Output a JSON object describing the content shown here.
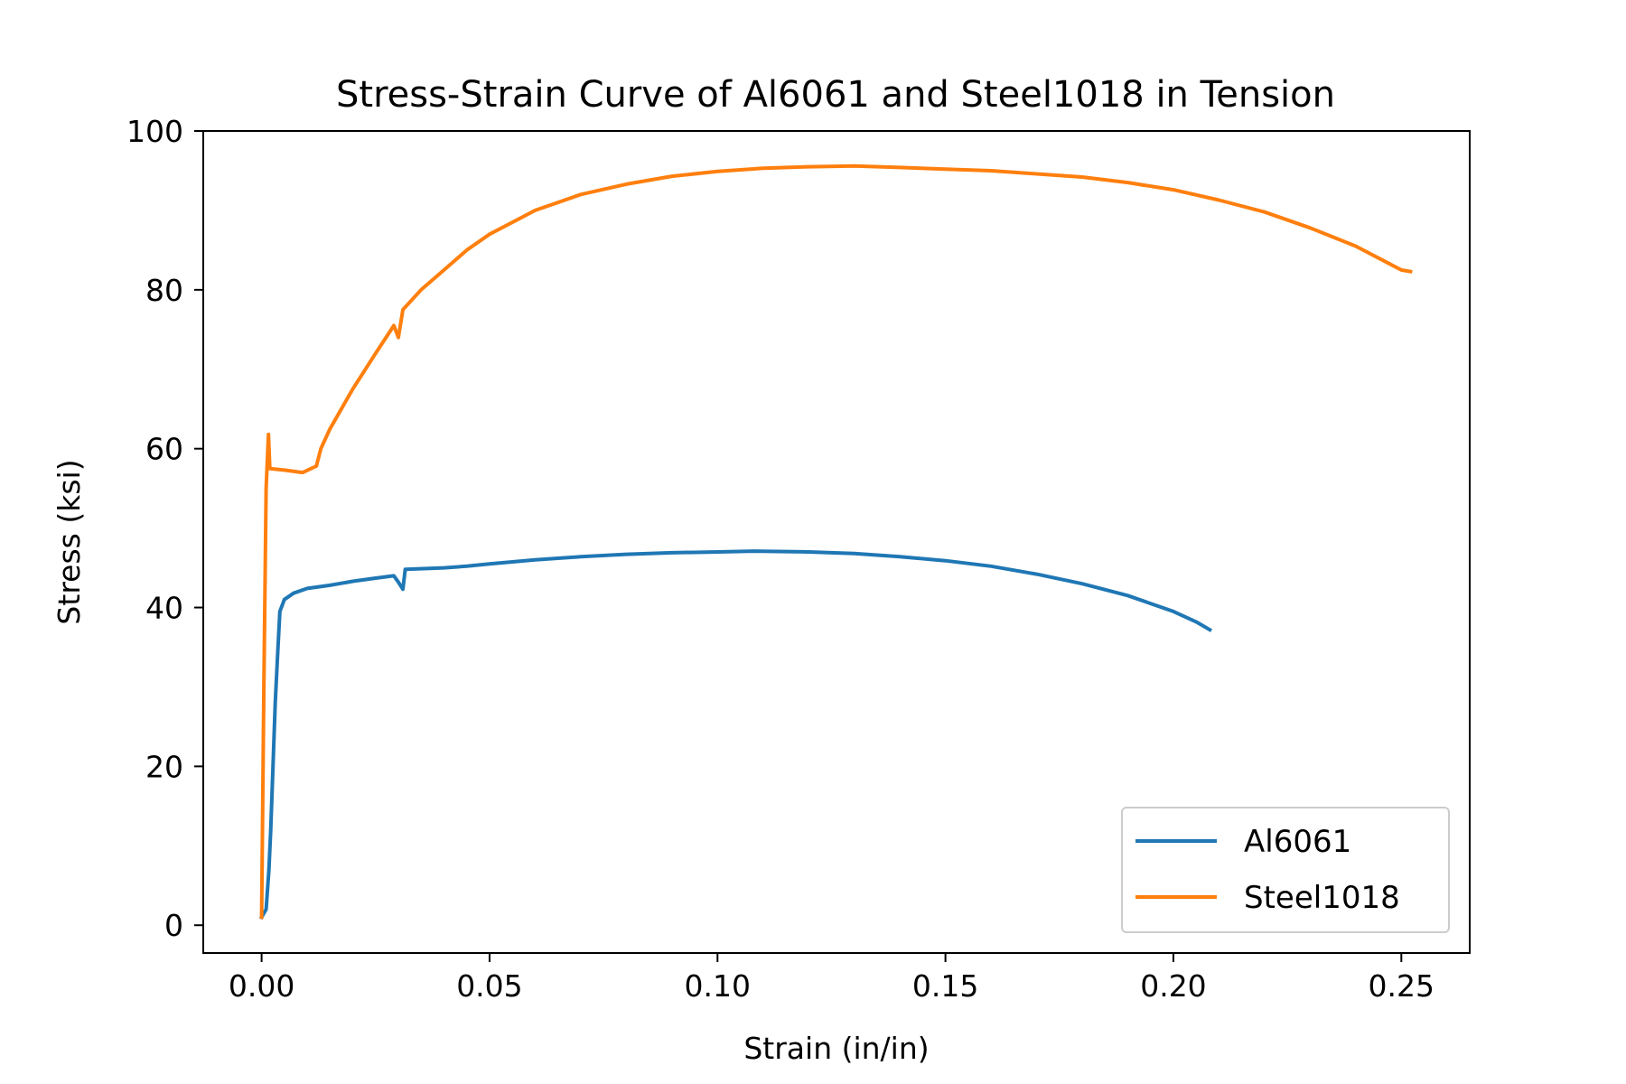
{
  "chart_data": {
    "type": "line",
    "title": "Stress-Strain Curve of Al6061 and Steel1018 in Tension",
    "xlabel": "Strain (in/in)",
    "ylabel": "Stress (ksi)",
    "xlim": [
      -0.0128,
      0.265
    ],
    "ylim": [
      -3.5,
      100
    ],
    "xticks": [
      0.0,
      0.05,
      0.1,
      0.15,
      0.2,
      0.25
    ],
    "xtick_labels": [
      "0.00",
      "0.05",
      "0.10",
      "0.15",
      "0.20",
      "0.25"
    ],
    "yticks": [
      0,
      20,
      40,
      60,
      80,
      100
    ],
    "ytick_labels": [
      "0",
      "20",
      "40",
      "60",
      "80",
      "100"
    ],
    "grid": false,
    "legend": "lower-right",
    "series": [
      {
        "name": "Al6061",
        "color": "#1f77b4",
        "points": [
          [
            0.0,
            1.0
          ],
          [
            0.001,
            2.0
          ],
          [
            0.0016,
            7.0
          ],
          [
            0.002,
            12.0
          ],
          [
            0.0025,
            20.0
          ],
          [
            0.003,
            28.0
          ],
          [
            0.0035,
            34.0
          ],
          [
            0.004,
            39.5
          ],
          [
            0.005,
            41.0
          ],
          [
            0.007,
            41.8
          ],
          [
            0.01,
            42.4
          ],
          [
            0.015,
            42.8
          ],
          [
            0.02,
            43.3
          ],
          [
            0.025,
            43.7
          ],
          [
            0.029,
            44.0
          ],
          [
            0.03,
            43.2
          ],
          [
            0.031,
            42.3
          ],
          [
            0.0315,
            44.8
          ],
          [
            0.04,
            45.0
          ],
          [
            0.045,
            45.2
          ],
          [
            0.05,
            45.5
          ],
          [
            0.06,
            46.0
          ],
          [
            0.07,
            46.4
          ],
          [
            0.08,
            46.7
          ],
          [
            0.09,
            46.9
          ],
          [
            0.1,
            47.0
          ],
          [
            0.108,
            47.1
          ],
          [
            0.12,
            47.0
          ],
          [
            0.13,
            46.8
          ],
          [
            0.14,
            46.4
          ],
          [
            0.15,
            45.9
          ],
          [
            0.16,
            45.2
          ],
          [
            0.17,
            44.2
          ],
          [
            0.18,
            43.0
          ],
          [
            0.19,
            41.5
          ],
          [
            0.195,
            40.5
          ],
          [
            0.2,
            39.5
          ],
          [
            0.205,
            38.2
          ],
          [
            0.208,
            37.2
          ]
        ]
      },
      {
        "name": "Steel1018",
        "color": "#ff7f0e",
        "points": [
          [
            0.0,
            1.0
          ],
          [
            0.0005,
            30.0
          ],
          [
            0.001,
            55.0
          ],
          [
            0.0015,
            61.8
          ],
          [
            0.0018,
            57.5
          ],
          [
            0.005,
            57.3
          ],
          [
            0.009,
            57.0
          ],
          [
            0.012,
            57.8
          ],
          [
            0.013,
            60.0
          ],
          [
            0.015,
            62.5
          ],
          [
            0.02,
            67.5
          ],
          [
            0.025,
            72.0
          ],
          [
            0.029,
            75.5
          ],
          [
            0.03,
            74.0
          ],
          [
            0.031,
            77.5
          ],
          [
            0.035,
            80.0
          ],
          [
            0.04,
            82.5
          ],
          [
            0.045,
            85.0
          ],
          [
            0.05,
            87.0
          ],
          [
            0.055,
            88.5
          ],
          [
            0.06,
            90.0
          ],
          [
            0.07,
            92.0
          ],
          [
            0.08,
            93.3
          ],
          [
            0.09,
            94.3
          ],
          [
            0.1,
            94.9
          ],
          [
            0.11,
            95.3
          ],
          [
            0.12,
            95.5
          ],
          [
            0.13,
            95.6
          ],
          [
            0.14,
            95.4
          ],
          [
            0.15,
            95.2
          ],
          [
            0.16,
            95.0
          ],
          [
            0.17,
            94.6
          ],
          [
            0.18,
            94.2
          ],
          [
            0.19,
            93.5
          ],
          [
            0.2,
            92.6
          ],
          [
            0.21,
            91.3
          ],
          [
            0.22,
            89.8
          ],
          [
            0.23,
            87.8
          ],
          [
            0.24,
            85.5
          ],
          [
            0.245,
            84.0
          ],
          [
            0.25,
            82.5
          ],
          [
            0.252,
            82.3
          ]
        ]
      }
    ]
  }
}
